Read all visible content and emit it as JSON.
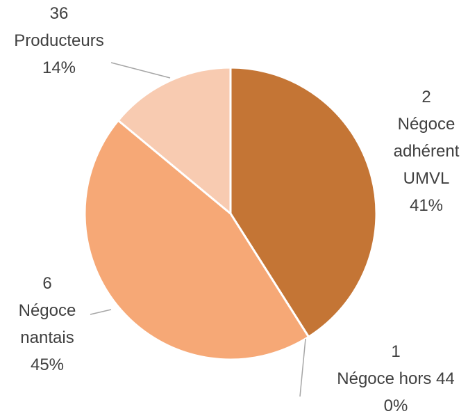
{
  "chart_data": {
    "type": "pie",
    "categories": [
      "Négoce adhérent UMVL",
      "Négoce hors 44",
      "Négoce nantais",
      "Producteurs"
    ],
    "counts": [
      2,
      1,
      6,
      36
    ],
    "values": [
      41,
      0,
      45,
      14
    ],
    "value_labels": [
      "41%",
      "0%",
      "45%",
      "14%"
    ],
    "colors": [
      "#c47535",
      "#e8b58a",
      "#f6a876",
      "#f8cbb1"
    ]
  }
}
